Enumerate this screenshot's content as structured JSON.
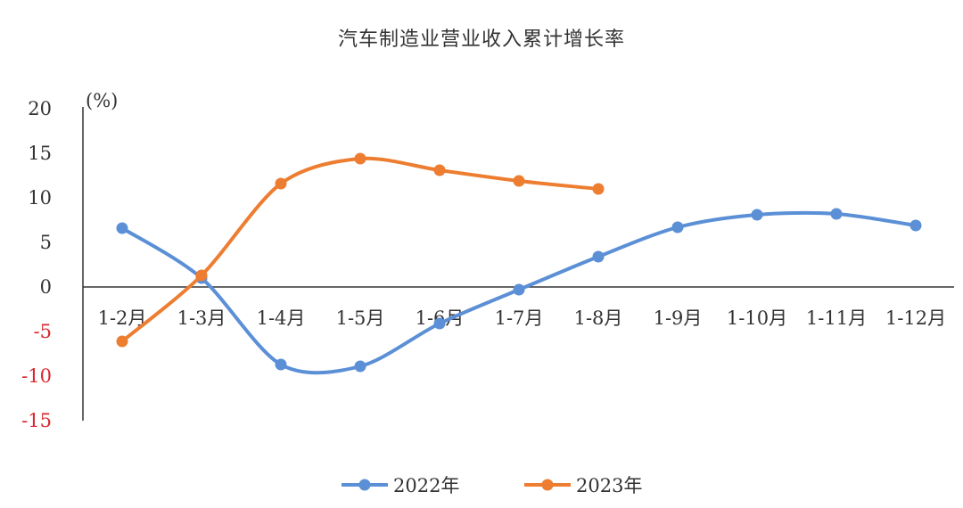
{
  "chart_data": {
    "type": "line",
    "title": "汽车制造业营业收入累计增长率",
    "unit_label": "(%)",
    "categories": [
      "1-2月",
      "1-3月",
      "1-4月",
      "1-5月",
      "1-6月",
      "1-7月",
      "1-8月",
      "1-9月",
      "1-10月",
      "1-11月",
      "1-12月"
    ],
    "ylim": [
      -15,
      20
    ],
    "yticks": [
      "20",
      "15",
      "10",
      "5",
      "0",
      "-5",
      "-10",
      "-15"
    ],
    "grid": false,
    "legend_position": "bottom",
    "series": [
      {
        "name": "2022年",
        "color": "#5B8FD6",
        "values": [
          6.6,
          1.0,
          -8.7,
          -8.9,
          -4.1,
          -0.3,
          3.4,
          6.7,
          8.1,
          8.2,
          6.9
        ]
      },
      {
        "name": "2023年",
        "color": "#ED7D31",
        "values": [
          -6.1,
          1.3,
          11.6,
          14.4,
          13.1,
          11.9,
          11.0,
          null,
          null,
          null,
          null
        ]
      }
    ],
    "colors": {
      "positive_tick": "#333333",
      "negative_tick": "#d9262e",
      "axis": "#333333"
    }
  }
}
